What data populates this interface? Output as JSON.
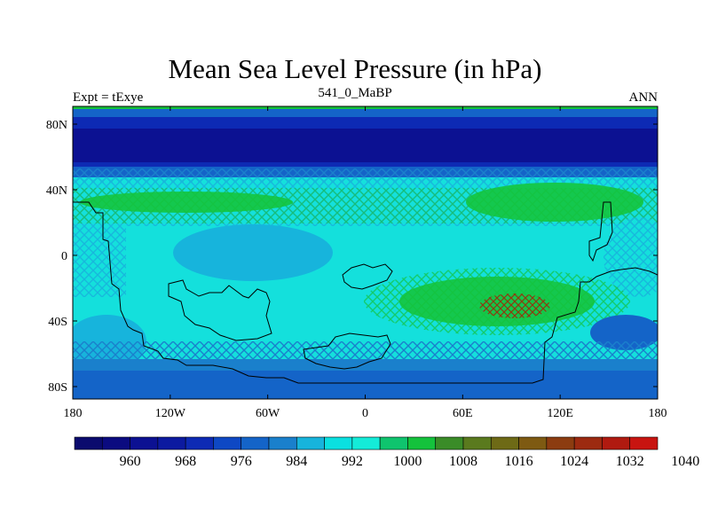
{
  "title": "Mean Sea Level Pressure (in hPa)",
  "subtitle_left": "Expt = tExye",
  "subtitle_center": "541_0_MaBP",
  "subtitle_right": "ANN",
  "lat_ticks": [
    "80N",
    "40N",
    "0",
    "40S",
    "80S"
  ],
  "lon_ticks": [
    "180",
    "120W",
    "60W",
    "0",
    "60E",
    "120E",
    "180"
  ],
  "colorbar": {
    "colors": [
      "#0b0b6e",
      "#0b0b80",
      "#0c1192",
      "#0c1aa0",
      "#0d2ab4",
      "#0e48c4",
      "#1464c8",
      "#1a80cc",
      "#17b4dc",
      "#0ae0e0",
      "#14ebd8",
      "#0fc46e",
      "#14c23c",
      "#3a8c28",
      "#5a7a1e",
      "#6e6a16",
      "#7e5a12",
      "#8c3c10",
      "#9c2a10",
      "#b01a10",
      "#c81410"
    ],
    "labels": [
      "960",
      "968",
      "976",
      "984",
      "992",
      "1000",
      "1008",
      "1016",
      "1024",
      "1032",
      "1040"
    ]
  }
}
